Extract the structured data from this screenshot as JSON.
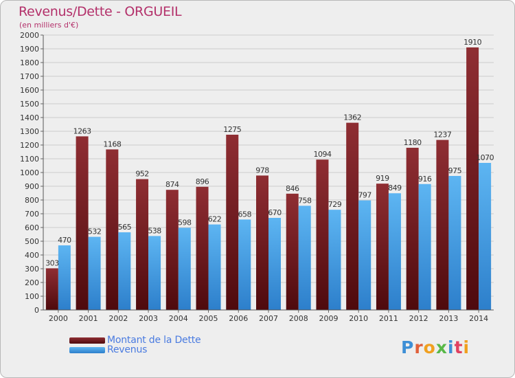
{
  "chart_data": {
    "type": "bar",
    "title": "Revenus/Dette - ORGUEIL",
    "subtitle": "(en milliers d'€)",
    "categories": [
      "2000",
      "2001",
      "2002",
      "2003",
      "2004",
      "2005",
      "2006",
      "2007",
      "2008",
      "2009",
      "2010",
      "2011",
      "2012",
      "2013",
      "2014"
    ],
    "series": [
      {
        "name": "Montant de la Dette",
        "color": "#7a1e22",
        "values": [
          303,
          1263,
          1168,
          952,
          874,
          896,
          1275,
          978,
          846,
          1094,
          1362,
          919,
          1180,
          1237,
          1910
        ]
      },
      {
        "name": "Revenus",
        "color": "#3d9ae2",
        "values": [
          470,
          532,
          565,
          538,
          598,
          622,
          658,
          670,
          758,
          729,
          797,
          849,
          916,
          975,
          1070
        ]
      }
    ],
    "ylim": [
      0,
      2000
    ],
    "ytick_step": 100,
    "grid": true,
    "legend": "bottom-left"
  },
  "logo": {
    "text": "Proxiti"
  }
}
